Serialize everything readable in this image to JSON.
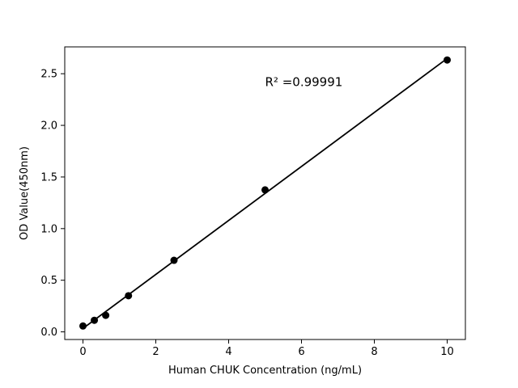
{
  "chart_data": {
    "type": "scatter",
    "title": "",
    "xlabel": "Human CHUK Concentration (ng/mL)",
    "ylabel": "OD Value(450nm)",
    "x": [
      0,
      0.3125,
      0.625,
      1.25,
      2.5,
      5,
      10
    ],
    "y": [
      0.057,
      0.112,
      0.16,
      0.35,
      0.693,
      1.375,
      2.633
    ],
    "annotation": {
      "text": "R² =0.99991",
      "x": 5.0,
      "y": 2.38
    },
    "xlim": [
      -0.5,
      10.5
    ],
    "ylim": [
      -0.074,
      2.76
    ],
    "xticks": [
      0,
      2,
      4,
      6,
      8,
      10
    ],
    "xtick_labels": [
      "0",
      "2",
      "4",
      "6",
      "8",
      "10"
    ],
    "yticks": [
      0.0,
      0.5,
      1.0,
      1.5,
      2.0,
      2.5
    ],
    "ytick_labels": [
      "0.0",
      "0.5",
      "1.0",
      "1.5",
      "2.0",
      "2.5"
    ],
    "grid": false,
    "legend": false,
    "line_style": "linear-fit",
    "marker": "circle",
    "marker_color": "#000000",
    "line_color": "#000000",
    "background_color": "#ffffff",
    "frame_color": "#000000"
  }
}
